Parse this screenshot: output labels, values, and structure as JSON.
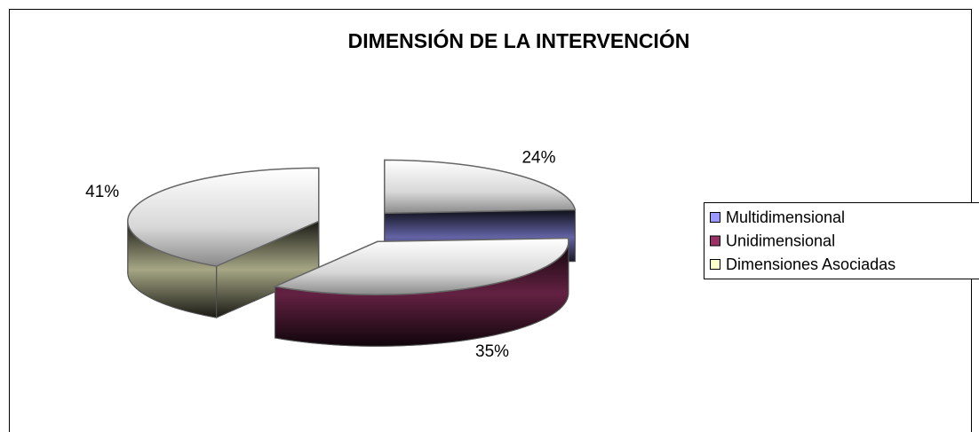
{
  "chart_data": {
    "type": "pie3d",
    "title": "DIMENSIÓN DE LA INTERVENCIÓN",
    "categories": [
      "Multidimensional",
      "Unidimensional",
      "Dimensiones Asociadas"
    ],
    "values": [
      24,
      35,
      41
    ],
    "value_labels": [
      "24%",
      "35%",
      "41%"
    ],
    "colors": [
      "#9999ff",
      "#993366",
      "#ffffcc"
    ],
    "legend": "right"
  }
}
